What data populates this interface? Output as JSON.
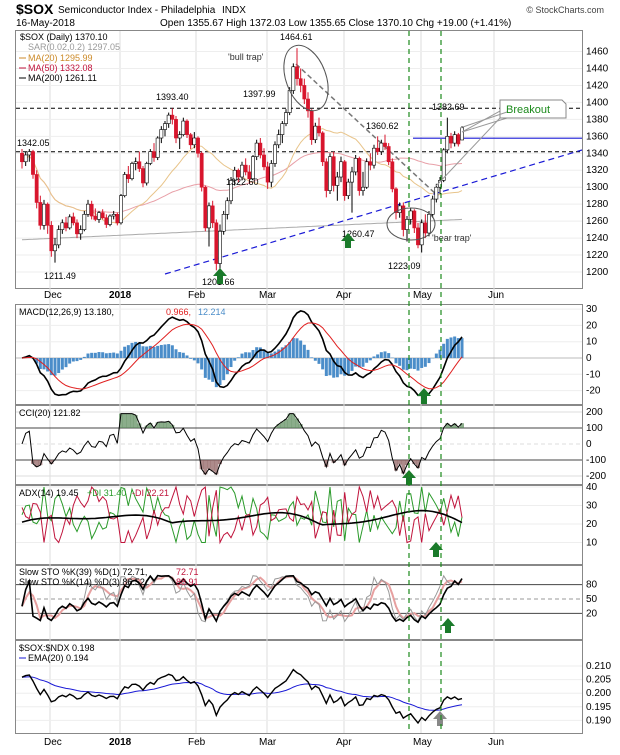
{
  "header": {
    "ticker": "$SOX",
    "name": "Semiconductor Index - Philadelphia",
    "exchange": "INDX",
    "date": "16-May-2018",
    "ohlc": "Open 1355.67  High 1372.03  Low 1355.65  Close 1370.10  Chg +19.00 (+1.41%)",
    "open": "1355.67",
    "high": "1372.03",
    "low": "1355.65",
    "close": "1370.10",
    "change": "+19.00 (+1.41%)",
    "watermark": "© StockCharts.com"
  },
  "legend_price": [
    {
      "text": "$SOX (Daily) 1370.10",
      "color": "#000000"
    },
    {
      "text": "SAR(0.02,0.2) 1297.05",
      "color": "#999999"
    },
    {
      "text": "MA(20) 1295.99",
      "color": "#cc8a28"
    },
    {
      "text": "MA(50) 1332.08",
      "color": "#c0143c"
    },
    {
      "text": "MA(200) 1261.11",
      "color": "#000000"
    }
  ],
  "price_annotations": [
    {
      "text": "1393.40"
    },
    {
      "text": "1342.05"
    },
    {
      "text": "1211.49"
    },
    {
      "text": "1464.61"
    },
    {
      "text": "1397.99"
    },
    {
      "text": "1322.60"
    },
    {
      "text": "1201.66"
    },
    {
      "text": "1360.62"
    },
    {
      "text": "1260.47"
    },
    {
      "text": "1223.09"
    },
    {
      "text": "1382.69"
    },
    {
      "text": "'bull trap'"
    },
    {
      "text": "'bear trap'"
    },
    {
      "text": "Breakout"
    }
  ],
  "x_axis_labels": [
    "Dec",
    "2018",
    "Feb",
    "Mar",
    "Apr",
    "May",
    "Jun"
  ],
  "price_y_ticks": [
    "1460",
    "1440",
    "1420",
    "1400",
    "1380",
    "1360",
    "1340",
    "1320",
    "1300",
    "1280",
    "1260",
    "1240",
    "1220",
    "1200"
  ],
  "macd": {
    "legend": "MACD(12,26,9) 13.180, 0.966, 12.214",
    "label": "MACD(12,26,9) 13.180,",
    "v2": "0.966,",
    "v3": "12.214",
    "ticks": [
      "30",
      "20",
      "10",
      "0",
      "-10",
      "-20"
    ]
  },
  "cci": {
    "legend": "CCI(20) 121.82",
    "ticks": [
      "200",
      "100",
      "0",
      "-100",
      "-200"
    ]
  },
  "adx": {
    "legend": "ADX(14) 19.45 +DI 31.40 -DI 22.21",
    "l1": "ADX(14) 19.45",
    "l2": "+DI 31.40",
    "l3": "-DI 22.21",
    "ticks": [
      "40",
      "30",
      "20",
      "10"
    ]
  },
  "sto": {
    "l1": "Slow STO %K(39) %D(1) 72.71, 72.71",
    "l1a": "Slow STO %K(39) %D(1) 72.71,",
    "l1b": "72.71",
    "l2a": "Slow STO %K(14) %D(3) 86.52,",
    "l2b": "88.91",
    "ticks": [
      "80",
      "50",
      "20"
    ]
  },
  "ratio": {
    "l1": "$SOX:$NDX 0.198",
    "l2": "EMA(20) 0.194",
    "ticks": [
      "0.210",
      "0.205",
      "0.200",
      "0.195",
      "0.190"
    ]
  },
  "colors": {
    "up": "#ffffff",
    "down": "#d8152c",
    "arrow": "#1a7a2a",
    "trend": "#1a1ad6",
    "signal": "#1b8a1b",
    "macd_hist": "#4b8dc9"
  },
  "chart_data": {
    "type": "candlestick",
    "title": "$SOX Semiconductor Index - Philadelphia INDX",
    "xlabel": "",
    "ylabel": "",
    "ylim": [
      1195,
      1475
    ],
    "period": "Dec 2017 – 16-May-2018",
    "series": [
      {
        "name": "$SOX (Daily)",
        "points": [
          [
            "Nov-21",
            1340,
            1345,
            1322,
            1330
          ],
          [
            "Nov-22",
            1330,
            1342,
            1325,
            1338
          ],
          [
            "Nov-24",
            1338,
            1345,
            1330,
            1342
          ],
          [
            "Nov-27",
            1342,
            1344,
            1310,
            1315
          ],
          [
            "Nov-28",
            1315,
            1320,
            1275,
            1282
          ],
          [
            "Nov-29",
            1282,
            1290,
            1250,
            1255
          ],
          [
            "Nov-30",
            1255,
            1285,
            1250,
            1280
          ],
          [
            "Dec-01",
            1280,
            1282,
            1245,
            1255
          ],
          [
            "Dec-04",
            1255,
            1260,
            1218,
            1225
          ],
          [
            "Dec-05",
            1225,
            1240,
            1211,
            1232
          ],
          [
            "Dec-06",
            1232,
            1255,
            1228,
            1250
          ],
          [
            "Dec-07",
            1250,
            1262,
            1245,
            1258
          ],
          [
            "Dec-08",
            1258,
            1265,
            1248,
            1252
          ],
          [
            "Dec-11",
            1252,
            1268,
            1250,
            1265
          ],
          [
            "Dec-12",
            1265,
            1270,
            1255,
            1258
          ],
          [
            "Dec-13",
            1258,
            1262,
            1240,
            1245
          ],
          [
            "Dec-14",
            1245,
            1255,
            1238,
            1250
          ],
          [
            "Dec-15",
            1250,
            1272,
            1248,
            1268
          ],
          [
            "Dec-18",
            1268,
            1285,
            1265,
            1280
          ],
          [
            "Dec-19",
            1280,
            1284,
            1262,
            1266
          ],
          [
            "Dec-20",
            1266,
            1275,
            1260,
            1262
          ],
          [
            "Dec-21",
            1262,
            1272,
            1258,
            1270
          ],
          [
            "Dec-22",
            1270,
            1274,
            1262,
            1264
          ],
          [
            "Dec-26",
            1264,
            1268,
            1252,
            1256
          ],
          [
            "Dec-27",
            1256,
            1268,
            1254,
            1266
          ],
          [
            "Dec-28",
            1266,
            1272,
            1262,
            1268
          ],
          [
            "Dec-29",
            1268,
            1270,
            1255,
            1258
          ],
          [
            "Jan-02",
            1258,
            1292,
            1256,
            1290
          ],
          [
            "Jan-03",
            1290,
            1318,
            1288,
            1315
          ],
          [
            "Jan-04",
            1315,
            1325,
            1305,
            1310
          ],
          [
            "Jan-05",
            1310,
            1330,
            1308,
            1328
          ],
          [
            "Jan-08",
            1328,
            1335,
            1320,
            1330
          ],
          [
            "Jan-09",
            1330,
            1342,
            1318,
            1322
          ],
          [
            "Jan-10",
            1322,
            1325,
            1300,
            1305
          ],
          [
            "Jan-11",
            1305,
            1330,
            1302,
            1328
          ],
          [
            "Jan-12",
            1328,
            1345,
            1326,
            1342
          ],
          [
            "Jan-16",
            1342,
            1352,
            1330,
            1335
          ],
          [
            "Jan-17",
            1335,
            1360,
            1332,
            1358
          ],
          [
            "Jan-18",
            1358,
            1372,
            1352,
            1368
          ],
          [
            "Jan-19",
            1368,
            1378,
            1360,
            1375
          ],
          [
            "Jan-22",
            1375,
            1388,
            1370,
            1385
          ],
          [
            "Jan-23",
            1385,
            1393,
            1374,
            1380
          ],
          [
            "Jan-24",
            1380,
            1384,
            1352,
            1358
          ],
          [
            "Jan-25",
            1358,
            1366,
            1345,
            1362
          ],
          [
            "Jan-26",
            1362,
            1382,
            1360,
            1378
          ],
          [
            "Jan-29",
            1378,
            1380,
            1358,
            1362
          ],
          [
            "Jan-30",
            1362,
            1364,
            1345,
            1350
          ],
          [
            "Jan-31",
            1350,
            1365,
            1346,
            1358
          ],
          [
            "Feb-01",
            1358,
            1360,
            1335,
            1340
          ],
          [
            "Feb-02",
            1340,
            1342,
            1295,
            1300
          ],
          [
            "Feb-05",
            1300,
            1302,
            1248,
            1252
          ],
          [
            "Feb-06",
            1252,
            1282,
            1230,
            1278
          ],
          [
            "Feb-07",
            1278,
            1284,
            1252,
            1258
          ],
          [
            "Feb-08",
            1258,
            1262,
            1202,
            1210
          ],
          [
            "Feb-09",
            1210,
            1256,
            1201,
            1248
          ],
          [
            "Feb-12",
            1248,
            1272,
            1244,
            1268
          ],
          [
            "Feb-13",
            1268,
            1288,
            1262,
            1284
          ],
          [
            "Feb-14",
            1284,
            1312,
            1280,
            1308
          ],
          [
            "Feb-15",
            1308,
            1324,
            1302,
            1320
          ],
          [
            "Feb-16",
            1320,
            1322,
            1306,
            1312
          ],
          [
            "Feb-20",
            1312,
            1330,
            1308,
            1326
          ],
          [
            "Feb-21",
            1326,
            1334,
            1314,
            1318
          ],
          [
            "Feb-22",
            1318,
            1326,
            1304,
            1310
          ],
          [
            "Feb-23",
            1310,
            1338,
            1308,
            1336
          ],
          [
            "Feb-26",
            1336,
            1356,
            1332,
            1352
          ],
          [
            "Feb-27",
            1352,
            1358,
            1334,
            1338
          ],
          [
            "Feb-28",
            1338,
            1346,
            1320,
            1324
          ],
          [
            "Mar-01",
            1324,
            1330,
            1298,
            1306
          ],
          [
            "Mar-02",
            1306,
            1332,
            1300,
            1328
          ],
          [
            "Mar-05",
            1328,
            1354,
            1324,
            1350
          ],
          [
            "Mar-06",
            1350,
            1368,
            1346,
            1362
          ],
          [
            "Mar-07",
            1362,
            1378,
            1352,
            1375
          ],
          [
            "Mar-08",
            1375,
            1392,
            1372,
            1388
          ],
          [
            "Mar-09",
            1388,
            1418,
            1385,
            1414
          ],
          [
            "Mar-12",
            1414,
            1446,
            1410,
            1442
          ],
          [
            "Mar-13",
            1442,
            1464,
            1420,
            1428
          ],
          [
            "Mar-14",
            1428,
            1440,
            1412,
            1420
          ],
          [
            "Mar-15",
            1420,
            1428,
            1398,
            1404
          ],
          [
            "Mar-16",
            1404,
            1412,
            1382,
            1390
          ],
          [
            "Mar-19",
            1390,
            1392,
            1350,
            1356
          ],
          [
            "Mar-20",
            1356,
            1376,
            1352,
            1372
          ],
          [
            "Mar-21",
            1372,
            1382,
            1360,
            1364
          ],
          [
            "Mar-22",
            1364,
            1366,
            1325,
            1330
          ],
          [
            "Mar-23",
            1330,
            1334,
            1288,
            1296
          ],
          [
            "Mar-26",
            1296,
            1340,
            1292,
            1336
          ],
          [
            "Mar-27",
            1336,
            1342,
            1295,
            1302
          ],
          [
            "Mar-28",
            1302,
            1318,
            1284,
            1312
          ],
          [
            "Mar-29",
            1312,
            1336,
            1306,
            1330
          ],
          [
            "Apr-02",
            1330,
            1332,
            1284,
            1290
          ],
          [
            "Apr-03",
            1290,
            1310,
            1286,
            1306
          ],
          [
            "Apr-04",
            1306,
            1324,
            1270,
            1318
          ],
          [
            "Apr-05",
            1318,
            1338,
            1314,
            1334
          ],
          [
            "Apr-06",
            1334,
            1336,
            1290,
            1296
          ],
          [
            "Apr-09",
            1296,
            1318,
            1290,
            1300
          ],
          [
            "Apr-10",
            1300,
            1334,
            1298,
            1330
          ],
          [
            "Apr-11",
            1330,
            1340,
            1320,
            1326
          ],
          [
            "Apr-12",
            1326,
            1350,
            1322,
            1346
          ],
          [
            "Apr-13",
            1346,
            1360,
            1338,
            1342
          ],
          [
            "Apr-16",
            1342,
            1356,
            1338,
            1352
          ],
          [
            "Apr-17",
            1352,
            1362,
            1344,
            1348
          ],
          [
            "Apr-18",
            1348,
            1352,
            1326,
            1330
          ],
          [
            "Apr-19",
            1330,
            1334,
            1294,
            1298
          ],
          [
            "Apr-20",
            1298,
            1300,
            1262,
            1270
          ],
          [
            "Apr-23",
            1270,
            1282,
            1264,
            1278
          ],
          [
            "Apr-24",
            1278,
            1282,
            1242,
            1250
          ],
          [
            "Apr-25",
            1250,
            1266,
            1236,
            1262
          ],
          [
            "Apr-26",
            1262,
            1276,
            1256,
            1272
          ],
          [
            "Apr-27",
            1272,
            1274,
            1246,
            1252
          ],
          [
            "Apr-30",
            1252,
            1258,
            1228,
            1232
          ],
          [
            "May-01",
            1232,
            1262,
            1223,
            1258
          ],
          [
            "May-02",
            1258,
            1268,
            1240,
            1246
          ],
          [
            "May-03",
            1246,
            1272,
            1242,
            1268
          ],
          [
            "May-04",
            1268,
            1290,
            1264,
            1286
          ],
          [
            "May-07",
            1286,
            1304,
            1282,
            1300
          ],
          [
            "May-08",
            1300,
            1312,
            1292,
            1308
          ],
          [
            "May-09",
            1308,
            1346,
            1306,
            1344
          ],
          [
            "May-10",
            1344,
            1382,
            1340,
            1360
          ],
          [
            "May-11",
            1360,
            1364,
            1346,
            1352
          ],
          [
            "May-14",
            1352,
            1366,
            1348,
            1362
          ],
          [
            "May-15",
            1362,
            1364,
            1348,
            1351
          ],
          [
            "May-16",
            1355.67,
            1372.03,
            1355.65,
            1370.1
          ]
        ]
      }
    ],
    "levels": [
      {
        "value": 1393.4,
        "style": "dashed"
      },
      {
        "value": 1342.05,
        "style": "dashed"
      },
      {
        "value": 1360,
        "style": "solid",
        "color": "#1a1ad6"
      }
    ]
  }
}
